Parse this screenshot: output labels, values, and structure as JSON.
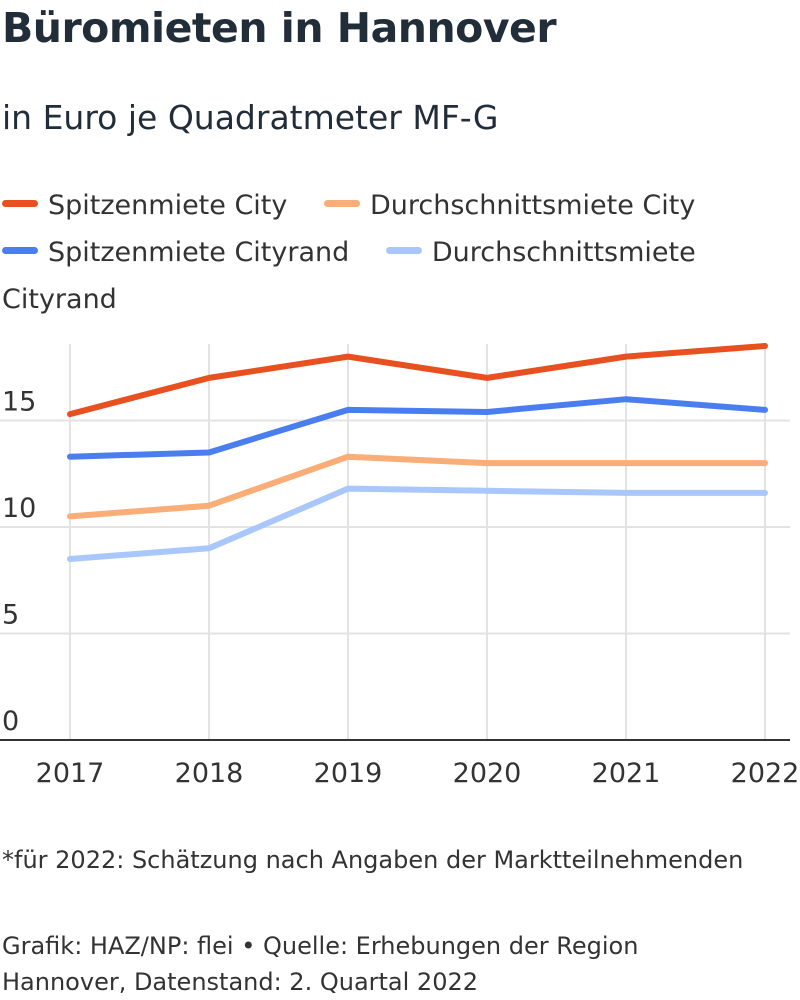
{
  "header": {
    "title": "Büromieten in Hannover",
    "subtitle": "in Euro je Quadratmeter MF-G"
  },
  "legend": [
    {
      "label": "Spitzenmiete City",
      "color": "#e8501f"
    },
    {
      "label": "Durchschnittsmiete City",
      "color": "#fbad78"
    },
    {
      "label": "Spitzenmiete Cityrand",
      "color": "#4a7ef0"
    },
    {
      "label": "Durchschnittsmiete Cityrand",
      "color": "#a9c7fb"
    }
  ],
  "chart_data": {
    "type": "line",
    "title": "Büromieten in Hannover",
    "subtitle": "in Euro je Quadratmeter MF-G",
    "x": [
      "2017",
      "2018",
      "2019",
      "2020",
      "2021",
      "2022"
    ],
    "y_ticks": [
      0,
      5,
      10,
      15
    ],
    "ylim": [
      0,
      18.5
    ],
    "grid": true,
    "legend_position": "top",
    "series": [
      {
        "name": "Spitzenmiete City",
        "color": "#e8501f",
        "values": [
          15.3,
          17.0,
          18.0,
          17.0,
          18.0,
          18.5
        ]
      },
      {
        "name": "Durchschnittsmiete City",
        "color": "#fbad78",
        "values": [
          10.5,
          11.0,
          13.3,
          13.0,
          13.0,
          13.0
        ]
      },
      {
        "name": "Spitzenmiete Cityrand",
        "color": "#4a7ef0",
        "values": [
          13.3,
          13.5,
          15.5,
          15.4,
          16.0,
          15.5
        ]
      },
      {
        "name": "Durchschnittsmiete Cityrand",
        "color": "#a9c7fb",
        "values": [
          8.5,
          9.0,
          11.8,
          11.7,
          11.6,
          11.6
        ]
      }
    ]
  },
  "footer": {
    "footnote": "*für 2022: Schätzung nach Angaben der Marktteilnehmenden",
    "source": "Grafik: HAZ/NP: flei • Quelle: Erhebungen der Region Hannover, Datenstand: 2. Quartal 2022"
  }
}
